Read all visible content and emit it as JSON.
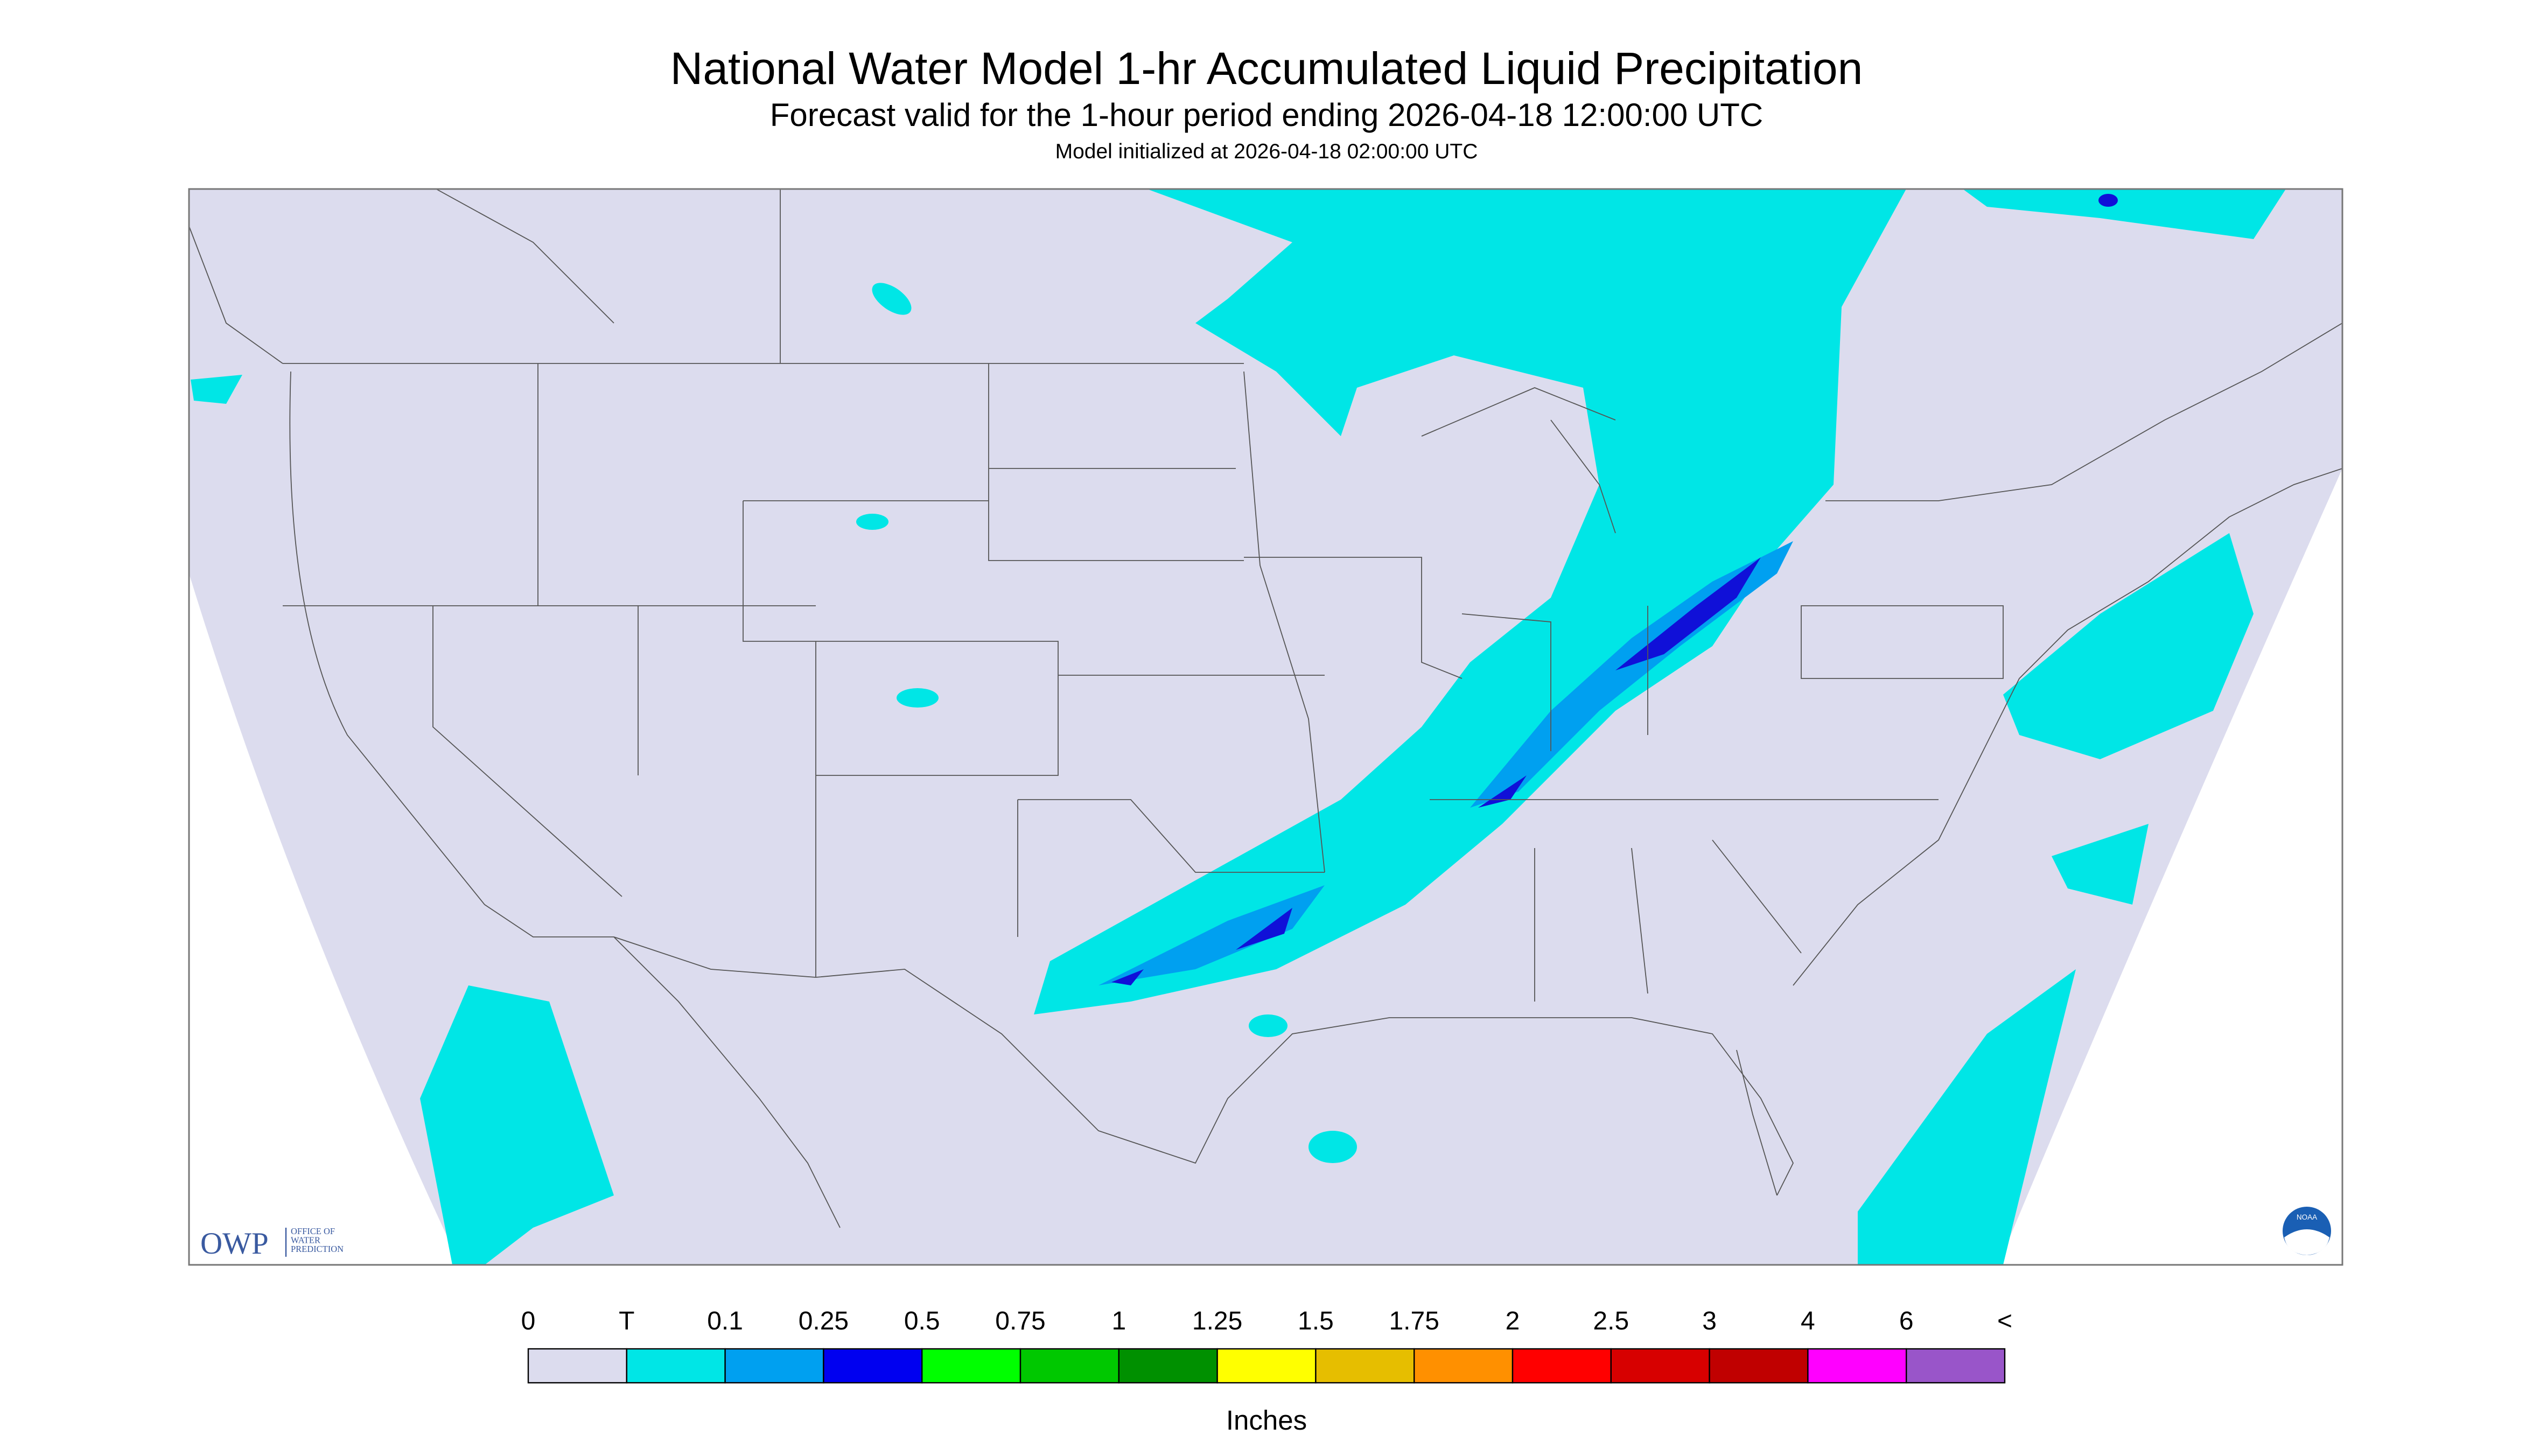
{
  "header": {
    "title": "National Water Model 1-hr Accumulated Liquid Precipitation",
    "subtitle": "Forecast valid for the 1-hour period ending 2026-04-18 12:00:00 UTC",
    "note": "Model initialized at 2026-04-18 02:00:00 UTC"
  },
  "legend": {
    "labels": [
      "0",
      "T",
      "0.1",
      "0.25",
      "0.5",
      "0.75",
      "1",
      "1.25",
      "1.5",
      "1.75",
      "2",
      "2.5",
      "3",
      "4",
      "6",
      "<"
    ],
    "colors": [
      "#dcdcee",
      "#00e6e6",
      "#00a0f0",
      "#0000f0",
      "#00ff00",
      "#00c800",
      "#009000",
      "#ffff00",
      "#e6be00",
      "#ff9000",
      "#ff0000",
      "#d70000",
      "#c00000",
      "#ff00ff",
      "#9955c9"
    ],
    "unit": "Inches"
  },
  "logos": {
    "owp": "OWP",
    "owp_lines": [
      "OFFICE OF",
      "WATER",
      "PREDICTION"
    ],
    "noaa": "NOAA"
  }
}
